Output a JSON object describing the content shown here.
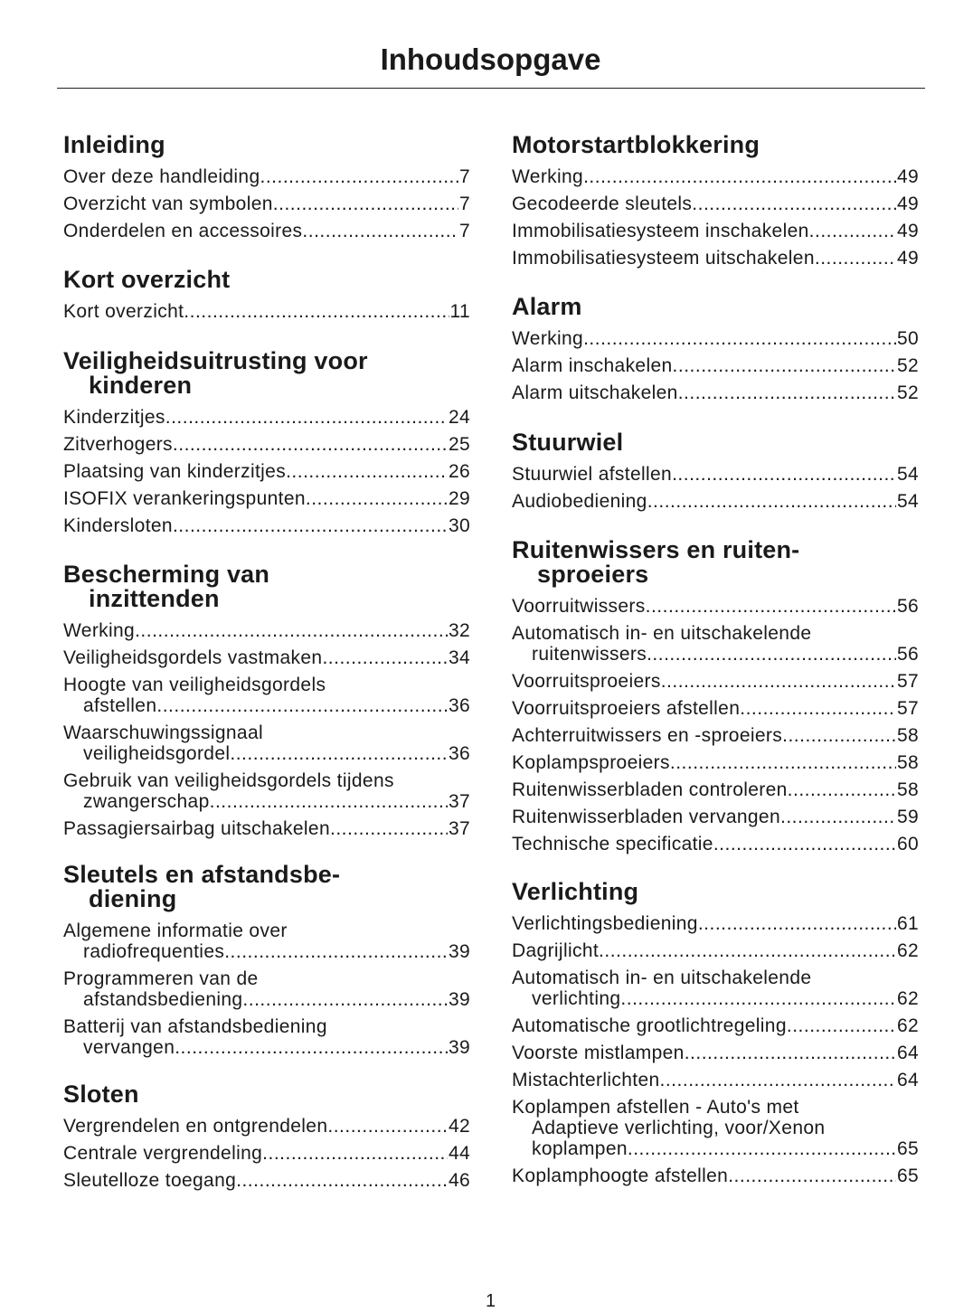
{
  "title": "Inhoudsopgave",
  "page_number": "1",
  "columns": [
    {
      "sections": [
        {
          "heading": [
            "Inleiding"
          ],
          "entries": [
            {
              "lines": [
                "Over deze handleiding"
              ],
              "page": "7"
            },
            {
              "lines": [
                "Overzicht van symbolen"
              ],
              "page": "7"
            },
            {
              "lines": [
                "Onderdelen en accessoires"
              ],
              "page": "7"
            }
          ]
        },
        {
          "heading": [
            "Kort overzicht"
          ],
          "entries": [
            {
              "lines": [
                "Kort overzicht"
              ],
              "page": "11"
            }
          ]
        },
        {
          "heading": [
            "Veiligheidsuitrusting voor",
            "kinderen"
          ],
          "entries": [
            {
              "lines": [
                "Kinderzitjes"
              ],
              "page": "24"
            },
            {
              "lines": [
                "Zitverhogers"
              ],
              "page": "25"
            },
            {
              "lines": [
                "Plaatsing van kinderzitjes"
              ],
              "page": "26"
            },
            {
              "lines": [
                "ISOFIX verankeringspunten"
              ],
              "page": "29"
            },
            {
              "lines": [
                "Kindersloten"
              ],
              "page": "30"
            }
          ]
        },
        {
          "heading": [
            "Bescherming van",
            "inzittenden"
          ],
          "entries": [
            {
              "lines": [
                "Werking"
              ],
              "page": "32"
            },
            {
              "lines": [
                "Veiligheidsgordels vastmaken"
              ],
              "page": "34"
            },
            {
              "lines": [
                "Hoogte van veiligheidsgordels",
                "afstellen"
              ],
              "page": "36"
            },
            {
              "lines": [
                "Waarschuwingssignaal",
                "veiligheidsgordel"
              ],
              "page": "36"
            },
            {
              "lines": [
                "Gebruik van veiligheidsgordels tijdens",
                "zwangerschap"
              ],
              "page": "37"
            },
            {
              "lines": [
                "Passagiersairbag uitschakelen"
              ],
              "page": "37"
            }
          ]
        },
        {
          "heading": [
            "Sleutels en afstandsbe-",
            "diening"
          ],
          "entries": [
            {
              "lines": [
                "Algemene informatie over",
                "radiofrequenties"
              ],
              "page": "39"
            },
            {
              "lines": [
                "Programmeren van de",
                "afstandsbediening"
              ],
              "page": "39"
            },
            {
              "lines": [
                "Batterij van afstandsbediening",
                "vervangen"
              ],
              "page": "39"
            }
          ]
        },
        {
          "heading": [
            "Sloten"
          ],
          "entries": [
            {
              "lines": [
                "Vergrendelen en ontgrendelen"
              ],
              "page": "42"
            },
            {
              "lines": [
                "Centrale vergrendeling"
              ],
              "page": "44"
            },
            {
              "lines": [
                "Sleutelloze toegang"
              ],
              "page": "46"
            }
          ]
        }
      ]
    },
    {
      "sections": [
        {
          "heading": [
            "Motorstartblokkering"
          ],
          "entries": [
            {
              "lines": [
                "Werking"
              ],
              "page": "49"
            },
            {
              "lines": [
                "Gecodeerde sleutels"
              ],
              "page": "49"
            },
            {
              "lines": [
                "Immobilisatiesysteem inschakelen"
              ],
              "page": "49"
            },
            {
              "lines": [
                "Immobilisatiesysteem uitschakelen"
              ],
              "page": "49"
            }
          ]
        },
        {
          "heading": [
            "Alarm"
          ],
          "entries": [
            {
              "lines": [
                "Werking"
              ],
              "page": "50"
            },
            {
              "lines": [
                "Alarm inschakelen"
              ],
              "page": "52"
            },
            {
              "lines": [
                "Alarm uitschakelen"
              ],
              "page": "52"
            }
          ]
        },
        {
          "heading": [
            "Stuurwiel"
          ],
          "entries": [
            {
              "lines": [
                "Stuurwiel afstellen"
              ],
              "page": "54"
            },
            {
              "lines": [
                "Audiobediening"
              ],
              "page": "54"
            }
          ]
        },
        {
          "heading": [
            "Ruitenwissers en ruiten-",
            "sproeiers"
          ],
          "entries": [
            {
              "lines": [
                "Voorruitwissers"
              ],
              "page": "56"
            },
            {
              "lines": [
                "Automatisch in- en uitschakelende",
                "ruitenwissers"
              ],
              "page": "56"
            },
            {
              "lines": [
                "Voorruitsproeiers"
              ],
              "page": "57"
            },
            {
              "lines": [
                "Voorruitsproeiers afstellen"
              ],
              "page": "57"
            },
            {
              "lines": [
                "Achterruitwissers en -sproeiers"
              ],
              "page": "58"
            },
            {
              "lines": [
                "Koplampsproeiers"
              ],
              "page": "58"
            },
            {
              "lines": [
                "Ruitenwisserbladen controleren"
              ],
              "page": "58"
            },
            {
              "lines": [
                "Ruitenwisserbladen vervangen"
              ],
              "page": "59"
            },
            {
              "lines": [
                "Technische specificatie"
              ],
              "page": "60"
            }
          ]
        },
        {
          "heading": [
            "Verlichting"
          ],
          "entries": [
            {
              "lines": [
                "Verlichtingsbediening"
              ],
              "page": "61"
            },
            {
              "lines": [
                "Dagrijlicht"
              ],
              "page": "62"
            },
            {
              "lines": [
                "Automatisch in- en uitschakelende",
                "verlichting"
              ],
              "page": "62"
            },
            {
              "lines": [
                "Automatische grootlichtregeling "
              ],
              "page": "62"
            },
            {
              "lines": [
                "Voorste mistlampen"
              ],
              "page": "64"
            },
            {
              "lines": [
                "Mistachterlichten"
              ],
              "page": "64"
            },
            {
              "lines": [
                "Koplampen afstellen - Auto's met",
                "Adaptieve verlichting, voor/Xenon",
                "koplampen"
              ],
              "page": "65"
            },
            {
              "lines": [
                "Koplamphoogte afstellen"
              ],
              "page": "65"
            }
          ]
        }
      ]
    }
  ]
}
